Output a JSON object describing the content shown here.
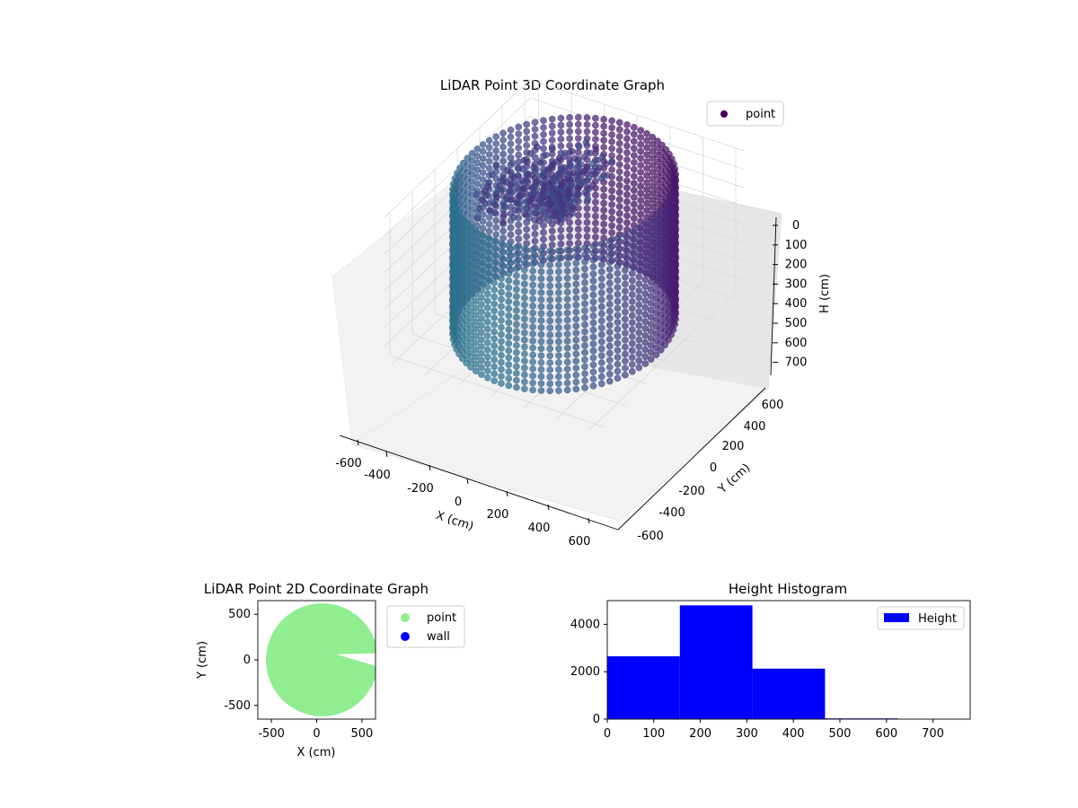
{
  "chart_data": [
    {
      "type": "scatter3d",
      "title": "LiDAR Point 3D Coordinate Graph",
      "xlabel": "X (cm)",
      "ylabel": "Y (cm)",
      "zlabel": "H (cm)",
      "xlim": [
        -650,
        650
      ],
      "ylim": [
        -650,
        650
      ],
      "zlim": [
        0,
        780
      ],
      "z_inverted": true,
      "xticks": [
        -600,
        -400,
        -200,
        0,
        200,
        400,
        600
      ],
      "yticks": [
        -600,
        -400,
        -200,
        0,
        200,
        400,
        600
      ],
      "zticks": [
        0,
        100,
        200,
        300,
        400,
        500,
        600,
        700
      ],
      "legend": {
        "entries": [
          "point"
        ],
        "placement": "top-right"
      },
      "grid": true,
      "colormap": "viridis",
      "shape": {
        "wall_radius": 560,
        "wall_height_max": 780
      },
      "series": [
        {
          "name": "point",
          "color": "#440154"
        }
      ]
    },
    {
      "type": "scatter",
      "title": "LiDAR Point 2D Coordinate Graph",
      "xlabel": "X (cm)",
      "ylabel": "Y (cm)",
      "xlim": [
        -650,
        650
      ],
      "ylim": [
        -650,
        650
      ],
      "xticks": [
        -500,
        0,
        500
      ],
      "yticks": [
        -500,
        0,
        500
      ],
      "legend": {
        "entries": [
          "point",
          "wall"
        ],
        "placement": "outside-right"
      },
      "series": [
        {
          "name": "point",
          "color": "#90ee90",
          "radius": 620
        },
        {
          "name": "wall",
          "color": "#0000ff"
        }
      ]
    },
    {
      "type": "bar",
      "title": "Height Histogram",
      "bins": [
        [
          0,
          156
        ],
        [
          156,
          312
        ],
        [
          312,
          468
        ],
        [
          468,
          624
        ],
        [
          624,
          780
        ]
      ],
      "values": [
        2650,
        4800,
        2130,
        30,
        0
      ],
      "xlim": [
        0,
        780
      ],
      "ylim": [
        0,
        5000
      ],
      "xticks": [
        0,
        100,
        200,
        300,
        400,
        500,
        600,
        700
      ],
      "yticks": [
        0,
        2000,
        4000
      ],
      "legend": {
        "entries": [
          "Height"
        ],
        "placement": "top-right"
      },
      "series": [
        {
          "name": "Height",
          "color": "#0000ff"
        }
      ]
    }
  ]
}
